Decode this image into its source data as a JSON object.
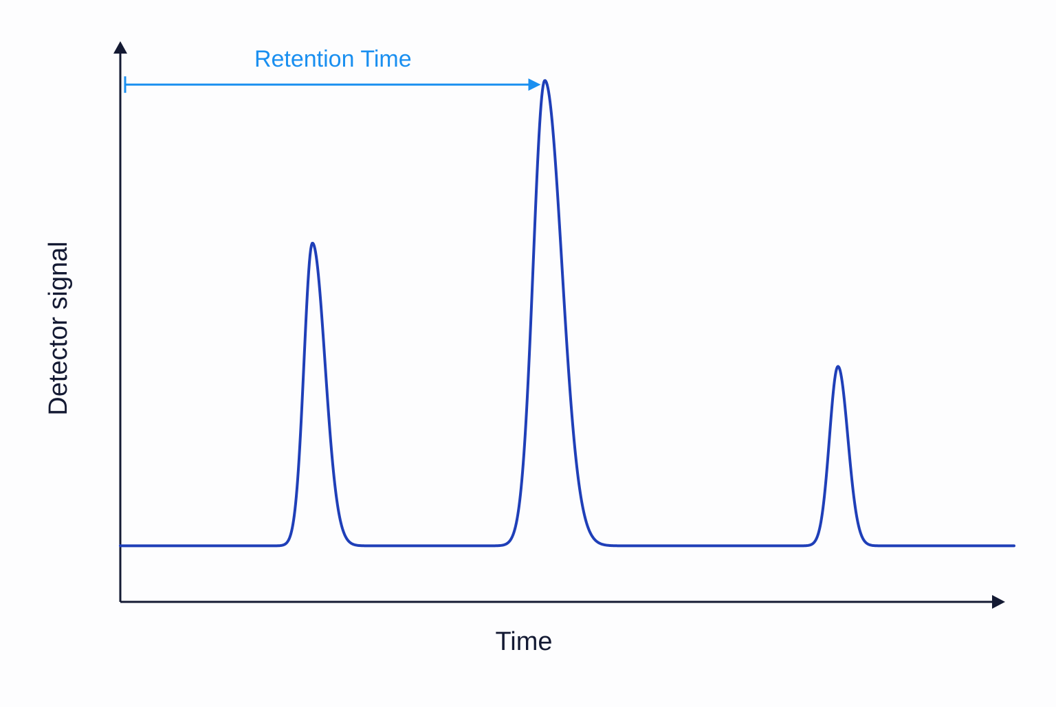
{
  "chart_data": {
    "type": "line",
    "title": "",
    "xlabel": "Time",
    "ylabel": "Detector signal",
    "xlim": [
      0,
      100
    ],
    "ylim": [
      0,
      100
    ],
    "baseline": 10,
    "grid": false,
    "legend": "none",
    "peaks": [
      {
        "center": 21.5,
        "height": 64,
        "width": 0.95,
        "tail": 1.4
      },
      {
        "center": 47.5,
        "height": 93,
        "width": 1.3,
        "tail": 1.9
      },
      {
        "center": 80.3,
        "height": 42,
        "width": 0.95,
        "tail": 1.1
      }
    ],
    "annotation": {
      "label": "Retention Time",
      "from_x": 0,
      "to_x": 47.5
    },
    "colors": {
      "trace": "#1f3fb8",
      "axis": "#141a33",
      "annotation": "#1a8ff0",
      "label": "#141a33"
    }
  }
}
